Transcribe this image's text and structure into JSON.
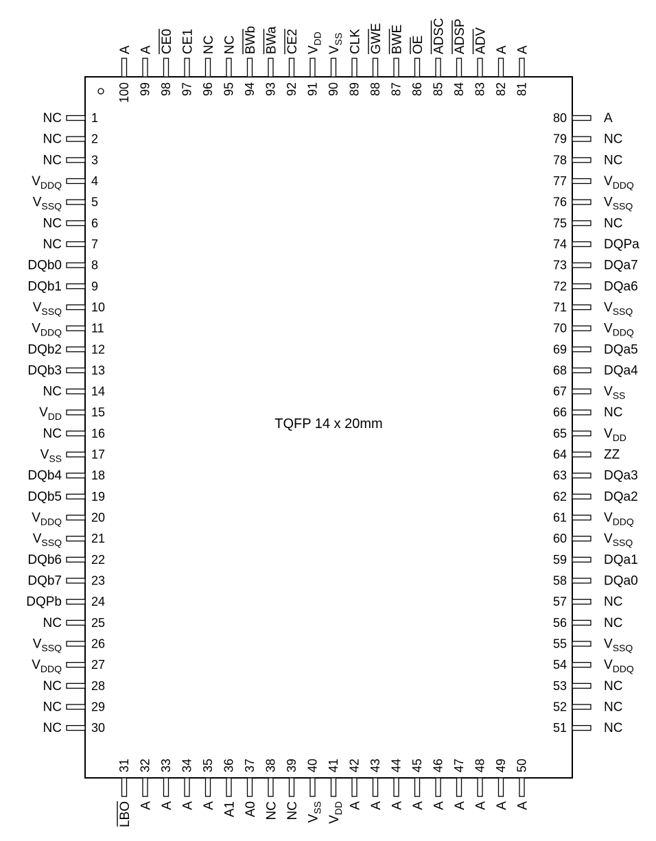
{
  "package_label": "TQFP 14 x 20mm",
  "left_pins": [
    {
      "num": "1",
      "label": "NC"
    },
    {
      "num": "2",
      "label": "NC"
    },
    {
      "num": "3",
      "label": "NC"
    },
    {
      "num": "4",
      "label": "V",
      "sub": "DDQ"
    },
    {
      "num": "5",
      "label": "V",
      "sub": "SSQ"
    },
    {
      "num": "6",
      "label": "NC"
    },
    {
      "num": "7",
      "label": "NC"
    },
    {
      "num": "8",
      "label": "DQb0"
    },
    {
      "num": "9",
      "label": "DQb1"
    },
    {
      "num": "10",
      "label": "V",
      "sub": "SSQ"
    },
    {
      "num": "11",
      "label": "V",
      "sub": "DDQ"
    },
    {
      "num": "12",
      "label": "DQb2"
    },
    {
      "num": "13",
      "label": "DQb3"
    },
    {
      "num": "14",
      "label": "NC"
    },
    {
      "num": "15",
      "label": "V",
      "sub": "DD"
    },
    {
      "num": "16",
      "label": "NC"
    },
    {
      "num": "17",
      "label": "V",
      "sub": "SS"
    },
    {
      "num": "18",
      "label": "DQb4"
    },
    {
      "num": "19",
      "label": "DQb5"
    },
    {
      "num": "20",
      "label": "V",
      "sub": "DDQ"
    },
    {
      "num": "21",
      "label": "V",
      "sub": "SSQ"
    },
    {
      "num": "22",
      "label": "DQb6"
    },
    {
      "num": "23",
      "label": "DQb7"
    },
    {
      "num": "24",
      "label": "DQPb"
    },
    {
      "num": "25",
      "label": "NC"
    },
    {
      "num": "26",
      "label": "V",
      "sub": "SSQ"
    },
    {
      "num": "27",
      "label": "V",
      "sub": "DDQ"
    },
    {
      "num": "28",
      "label": "NC"
    },
    {
      "num": "29",
      "label": "NC"
    },
    {
      "num": "30",
      "label": "NC"
    }
  ],
  "right_pins": [
    {
      "num": "80",
      "label": "A"
    },
    {
      "num": "79",
      "label": "NC"
    },
    {
      "num": "78",
      "label": "NC"
    },
    {
      "num": "77",
      "label": "V",
      "sub": "DDQ"
    },
    {
      "num": "76",
      "label": "V",
      "sub": "SSQ"
    },
    {
      "num": "75",
      "label": "NC"
    },
    {
      "num": "74",
      "label": "DQPa"
    },
    {
      "num": "73",
      "label": "DQa7"
    },
    {
      "num": "72",
      "label": "DQa6"
    },
    {
      "num": "71",
      "label": "V",
      "sub": "SSQ"
    },
    {
      "num": "70",
      "label": "V",
      "sub": "DDQ"
    },
    {
      "num": "69",
      "label": "DQa5"
    },
    {
      "num": "68",
      "label": "DQa4"
    },
    {
      "num": "67",
      "label": "V",
      "sub": "SS"
    },
    {
      "num": "66",
      "label": "NC"
    },
    {
      "num": "65",
      "label": "V",
      "sub": "DD"
    },
    {
      "num": "64",
      "label": "ZZ"
    },
    {
      "num": "63",
      "label": "DQa3"
    },
    {
      "num": "62",
      "label": "DQa2"
    },
    {
      "num": "61",
      "label": "V",
      "sub": "DDQ"
    },
    {
      "num": "60",
      "label": "V",
      "sub": "SSQ"
    },
    {
      "num": "59",
      "label": "DQa1"
    },
    {
      "num": "58",
      "label": "DQa0"
    },
    {
      "num": "57",
      "label": "NC"
    },
    {
      "num": "56",
      "label": "NC"
    },
    {
      "num": "55",
      "label": "V",
      "sub": "SSQ"
    },
    {
      "num": "54",
      "label": "V",
      "sub": "DDQ"
    },
    {
      "num": "53",
      "label": "NC"
    },
    {
      "num": "52",
      "label": "NC"
    },
    {
      "num": "51",
      "label": "NC"
    }
  ],
  "top_pins": [
    {
      "num": "100",
      "label": "A"
    },
    {
      "num": "99",
      "label": "A"
    },
    {
      "num": "98",
      "label": "CE0",
      "overbar": true
    },
    {
      "num": "97",
      "label": "CE1"
    },
    {
      "num": "96",
      "label": "NC"
    },
    {
      "num": "95",
      "label": "NC"
    },
    {
      "num": "94",
      "label": "BWb",
      "overbar": true
    },
    {
      "num": "93",
      "label": "BWa",
      "overbar": true
    },
    {
      "num": "92",
      "label": "CE2",
      "overbar": true
    },
    {
      "num": "91",
      "label": "V",
      "sub": "DD"
    },
    {
      "num": "90",
      "label": "V",
      "sub": "SS"
    },
    {
      "num": "89",
      "label": "CLK"
    },
    {
      "num": "88",
      "label": "GWE",
      "overbar": true
    },
    {
      "num": "87",
      "label": "BWE",
      "overbar": true
    },
    {
      "num": "86",
      "label": "OE",
      "overbar": true
    },
    {
      "num": "85",
      "label": "ADSC",
      "overbar": true
    },
    {
      "num": "84",
      "label": "ADSP",
      "overbar": true
    },
    {
      "num": "83",
      "label": "ADV",
      "overbar": true
    },
    {
      "num": "82",
      "label": "A"
    },
    {
      "num": "81",
      "label": "A"
    }
  ],
  "bottom_pins": [
    {
      "num": "31",
      "label": "LBO",
      "overbar": true
    },
    {
      "num": "32",
      "label": "A"
    },
    {
      "num": "33",
      "label": "A"
    },
    {
      "num": "34",
      "label": "A"
    },
    {
      "num": "35",
      "label": "A"
    },
    {
      "num": "36",
      "label": "A1"
    },
    {
      "num": "37",
      "label": "A0"
    },
    {
      "num": "38",
      "label": "NC"
    },
    {
      "num": "39",
      "label": "NC"
    },
    {
      "num": "40",
      "label": "V",
      "sub": "SS"
    },
    {
      "num": "41",
      "label": "V",
      "sub": "DD"
    },
    {
      "num": "42",
      "label": "A"
    },
    {
      "num": "43",
      "label": "A"
    },
    {
      "num": "44",
      "label": "A"
    },
    {
      "num": "45",
      "label": "A"
    },
    {
      "num": "46",
      "label": "A"
    },
    {
      "num": "47",
      "label": "A"
    },
    {
      "num": "48",
      "label": "A"
    },
    {
      "num": "49",
      "label": "A"
    },
    {
      "num": "50",
      "label": "A"
    }
  ]
}
